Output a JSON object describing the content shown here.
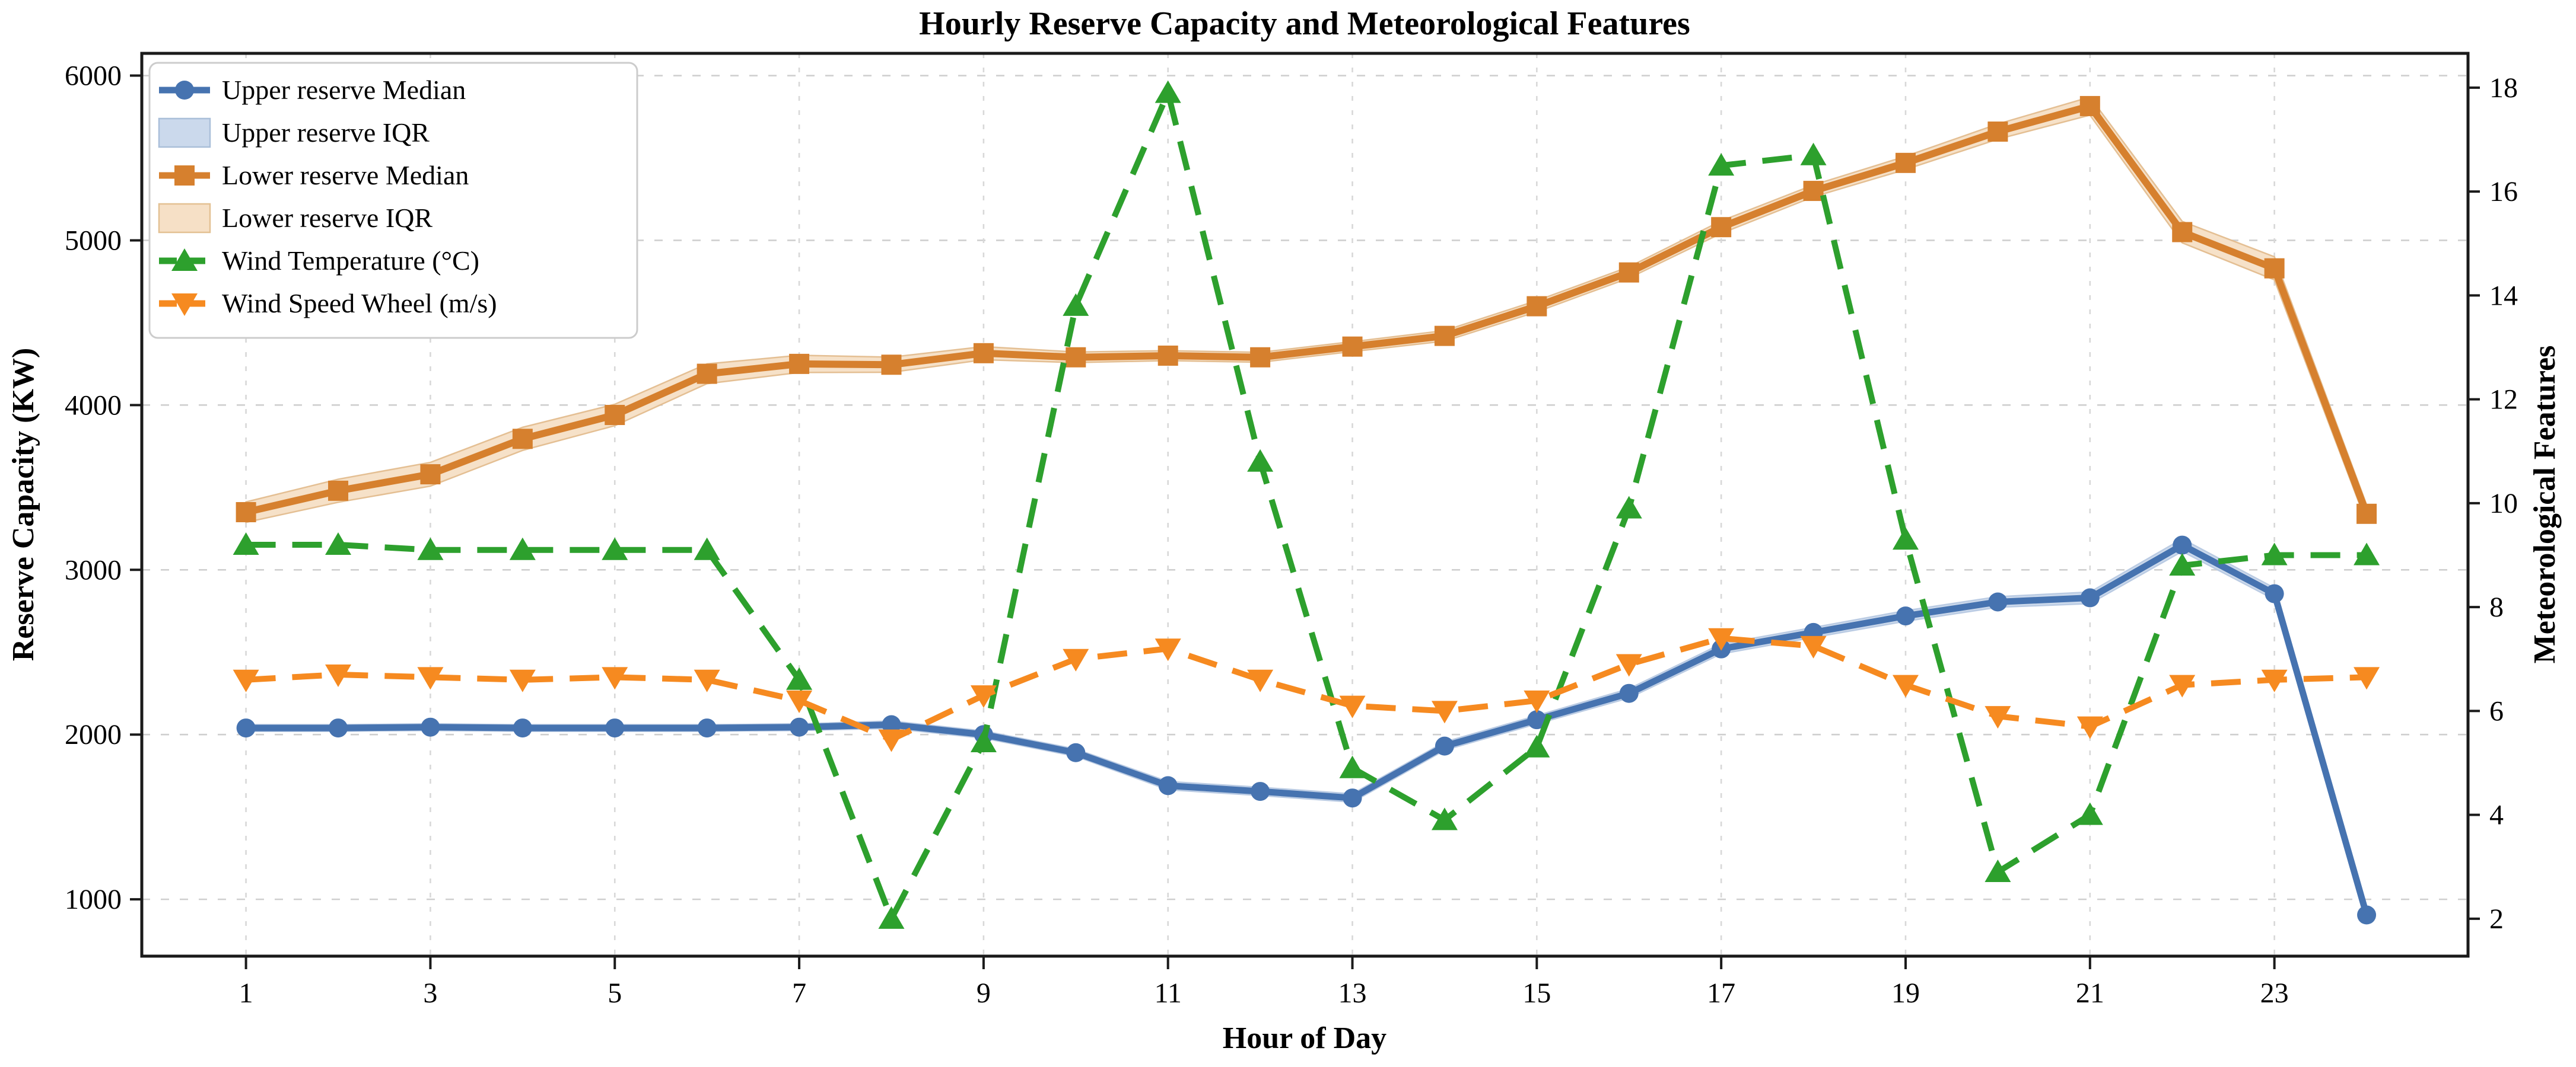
{
  "title": "Hourly Reserve Capacity and Meteorological Features",
  "axes": {
    "x_label": "Hour of Day",
    "y_left_label": "Reserve Capacity (KW)",
    "y_right_label": "Meteorological Features",
    "x_tick_labels": [
      1,
      3,
      5,
      7,
      9,
      11,
      13,
      15,
      17,
      19,
      21,
      23
    ],
    "y_left_tick_labels": [
      1000,
      2000,
      3000,
      4000,
      5000,
      6000
    ],
    "y_right_tick_labels": [
      2,
      4,
      6,
      8,
      10,
      12,
      14,
      16,
      18
    ]
  },
  "legend": [
    {
      "label": "Upper reserve Median",
      "swatch": "line-circle",
      "color": "#4673B0"
    },
    {
      "label": "Upper reserve IQR",
      "swatch": "patch",
      "color": "#CBD9EC",
      "edge": "#AABFD9"
    },
    {
      "label": "Lower reserve Median",
      "swatch": "line-square",
      "color": "#D6802E"
    },
    {
      "label": "Lower reserve IQR",
      "swatch": "patch",
      "color": "#F6E0C6",
      "edge": "#E3C193"
    },
    {
      "label": "Wind Temperature (°C)",
      "swatch": "dash-triangle-up",
      "color": "#2DA02D"
    },
    {
      "label": "Wind Speed Wheel (m/s)",
      "swatch": "dash-triangle-down",
      "color": "#F68A20"
    }
  ],
  "colors": {
    "upper_median": "#4673B0",
    "upper_band": "#CBD9EC",
    "upper_band_edge": "#B7C9E2",
    "lower_median": "#D6802E",
    "lower_band": "#F6E0C6",
    "lower_band_edge": "#E3BC8E",
    "wind_temp": "#2DA02D",
    "wind_speed": "#F68A20",
    "grid": "#cfcfcf",
    "spine": "#1a1a1a"
  },
  "chart_data": {
    "type": "line",
    "title": "Hourly Reserve Capacity and Meteorological Features",
    "xlabel": "Hour of Day",
    "ylabel_left": "Reserve Capacity (KW)",
    "ylabel_right": "Meteorological Features",
    "x": [
      1,
      2,
      3,
      4,
      5,
      6,
      7,
      8,
      9,
      10,
      11,
      12,
      13,
      14,
      15,
      16,
      17,
      18,
      19,
      20,
      21,
      22,
      23,
      24
    ],
    "xlim": [
      -0.13,
      25.1
    ],
    "ylim_left": [
      655,
      6135
    ],
    "ylim_right": [
      1.28,
      18.66
    ],
    "grid": true,
    "legend_position": "upper-left",
    "series": [
      {
        "name": "Upper reserve Median",
        "axis": "left",
        "kind": "line",
        "line": "solid",
        "marker": "circle",
        "values": [
          2040,
          2040,
          2045,
          2040,
          2040,
          2040,
          2045,
          2060,
          2000,
          1890,
          1690,
          1655,
          1615,
          1930,
          2090,
          2250,
          2520,
          2620,
          2720,
          2805,
          2830,
          3150,
          2855,
          905
        ]
      },
      {
        "name": "Upper reserve IQR",
        "axis": "left",
        "kind": "band",
        "around": "Upper reserve Median",
        "half_width": [
          20,
          20,
          20,
          20,
          20,
          20,
          20,
          22,
          22,
          22,
          25,
          25,
          25,
          25,
          25,
          28,
          30,
          30,
          32,
          32,
          35,
          38,
          35,
          25
        ]
      },
      {
        "name": "Lower reserve Median",
        "axis": "left",
        "kind": "line",
        "line": "solid",
        "marker": "square",
        "values": [
          3350,
          3480,
          3580,
          3795,
          3940,
          4190,
          4250,
          4245,
          4315,
          4290,
          4300,
          4290,
          4355,
          4420,
          4600,
          4805,
          5080,
          5300,
          5470,
          5660,
          5815,
          5050,
          4830,
          3340
        ]
      },
      {
        "name": "Lower reserve IQR",
        "axis": "left",
        "kind": "band",
        "around": "Lower reserve Median",
        "half_width": [
          62,
          70,
          72,
          70,
          65,
          60,
          52,
          46,
          40,
          32,
          30,
          30,
          30,
          32,
          34,
          34,
          38,
          36,
          40,
          46,
          55,
          65,
          70,
          55
        ]
      },
      {
        "name": "Wind Temperature (°C)",
        "axis": "right",
        "kind": "line",
        "line": "dashed",
        "marker": "triangle-up",
        "values": [
          9.2,
          9.2,
          9.1,
          9.1,
          9.1,
          9.1,
          6.6,
          2.0,
          5.4,
          13.8,
          17.9,
          10.8,
          4.9,
          3.9,
          5.3,
          9.9,
          16.5,
          16.7,
          9.3,
          2.9,
          4.0,
          8.8,
          9.0,
          9.0
        ]
      },
      {
        "name": "Wind Speed Wheel (m/s)",
        "axis": "right",
        "kind": "line",
        "line": "dashed",
        "marker": "triangle-down",
        "values": [
          6.6,
          6.7,
          6.65,
          6.6,
          6.65,
          6.6,
          6.2,
          5.45,
          6.3,
          7.0,
          7.2,
          6.6,
          6.1,
          6.0,
          6.2,
          6.9,
          7.4,
          7.25,
          6.5,
          5.9,
          5.7,
          6.5,
          6.6,
          6.65
        ]
      }
    ]
  }
}
